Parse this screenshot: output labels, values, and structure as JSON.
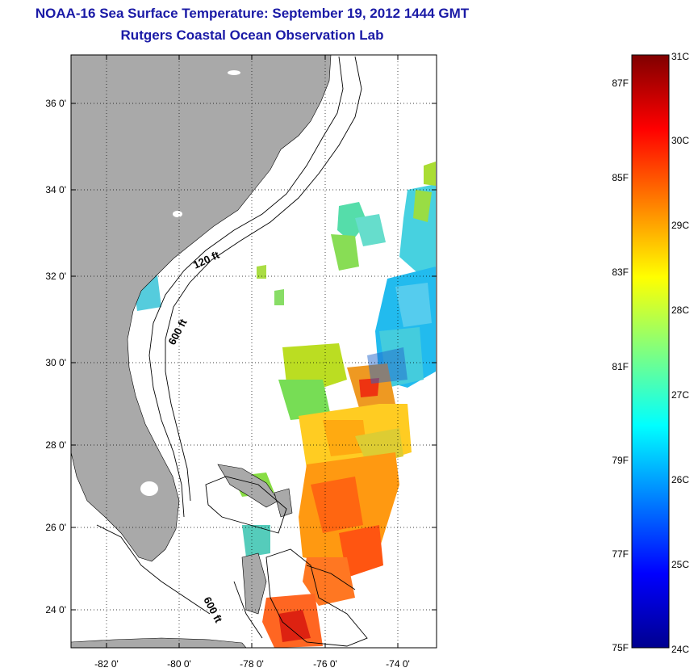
{
  "title": "NOAA-16 Sea Surface Temperature:  September 19, 2012 1444 GMT",
  "subtitle": "Rutgers Coastal Ocean Observation Lab",
  "map": {
    "lon_ticks": [
      "-82 0'",
      "-80 0'",
      "-78 0'",
      "-76 0'",
      "-74 0'"
    ],
    "lat_ticks": [
      "36 0'",
      "34 0'",
      "32 0'",
      "30 0'",
      "28 0'",
      "26 0'",
      "24 0'"
    ],
    "land_color": "#a9a9a9",
    "contours": [
      "120 ft",
      "600 ft",
      "600 ft"
    ]
  },
  "colorbar": {
    "celsius": [
      "31C",
      "30C",
      "29C",
      "28C",
      "27C",
      "26C",
      "25C",
      "24C"
    ],
    "fahrenheit": [
      "87F",
      "85F",
      "83F",
      "81F",
      "79F",
      "77F",
      "75F"
    ]
  }
}
